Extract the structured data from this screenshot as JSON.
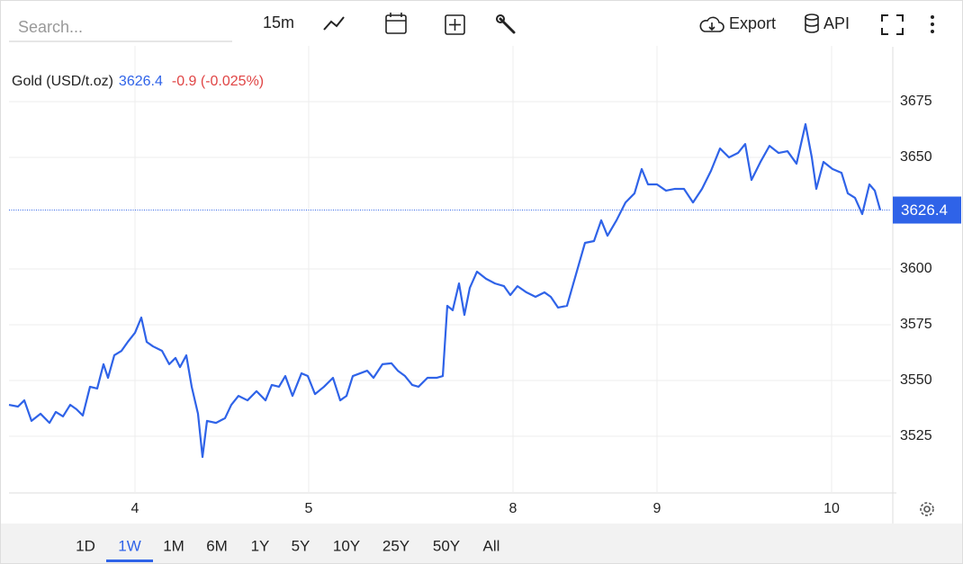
{
  "toolbar": {
    "search_placeholder": "Search...",
    "interval": "15m",
    "export": "Export",
    "api": "API"
  },
  "chart_data": {
    "type": "line",
    "title": "Gold (USD/t.oz)",
    "price": 3626.4,
    "change": "-0.9 (-0.025%)",
    "color": "#2f63e8",
    "x": [
      0,
      1,
      1.7,
      2.5,
      3.5,
      4.5,
      5.2,
      6,
      6.8,
      7.5,
      8.2,
      9,
      9.8,
      10.5,
      11,
      11.7,
      12.5,
      13.2,
      14,
      14.7,
      15.3,
      16,
      17,
      17.8,
      18.5,
      19,
      19.7,
      20.3,
      21,
      21.5,
      22,
      23,
      24,
      24.7,
      25.5,
      26.5,
      27.5,
      28.5,
      29.2,
      30,
      30.7,
      31.5,
      32.5,
      33.2,
      34,
      35,
      36,
      36.8,
      37.5,
      38.2,
      39,
      39.8,
      40.5,
      41.5,
      42.5,
      43.2,
      44,
      44.8,
      45.5,
      46.5,
      47.5,
      48.2,
      48.7,
      49.3,
      50,
      50.6,
      51.2,
      52,
      53,
      54,
      55,
      55.7,
      56.5,
      57.5,
      58.5,
      59.5,
      60.2,
      61,
      62,
      63,
      64,
      65,
      65.8,
      66.5,
      67.5,
      68.5,
      69.5,
      70.3,
      71,
      72,
      73,
      74,
      75,
      76,
      77,
      78,
      79,
      80,
      81,
      81.8,
      82.5,
      83.5,
      84.5,
      85.5,
      86.5,
      87.5,
      88.5,
      89.2,
      89.7,
      90.5,
      91.5,
      92.5,
      93.2,
      94,
      94.8,
      95.6,
      96.2,
      96.8
    ],
    "values": [
      3539.1,
      3538.3,
      3541.1,
      3531.9,
      3535.1,
      3531.0,
      3535.9,
      3533.9,
      3539.1,
      3537.1,
      3534.3,
      3547.2,
      3546.4,
      3557.3,
      3551.2,
      3561.3,
      3563.3,
      3567.3,
      3571.4,
      3578.2,
      3567.3,
      3565.3,
      3563.3,
      3557.3,
      3560.1,
      3556.0,
      3561.3,
      3547.2,
      3535.1,
      3515.7,
      3531.9,
      3531.0,
      3533.1,
      3539.1,
      3543.1,
      3541.1,
      3545.2,
      3541.1,
      3548.0,
      3547.2,
      3552.0,
      3543.1,
      3553.2,
      3552.0,
      3543.9,
      3547.2,
      3551.2,
      3541.1,
      3543.1,
      3552.0,
      3553.2,
      3554.4,
      3551.2,
      3557.3,
      3557.7,
      3554.4,
      3552.0,
      3548.0,
      3547.2,
      3551.2,
      3551.2,
      3552.0,
      3583.5,
      3581.5,
      3593.5,
      3579.4,
      3591.5,
      3598.8,
      3595.6,
      3593.5,
      3592.3,
      3588.3,
      3592.3,
      3589.5,
      3587.5,
      3589.5,
      3587.5,
      3582.7,
      3583.5,
      3597.6,
      3611.7,
      3612.5,
      3621.8,
      3614.9,
      3621.8,
      3629.8,
      3633.9,
      3644.8,
      3637.9,
      3637.9,
      3635.1,
      3635.9,
      3635.9,
      3629.8,
      3635.9,
      3644.0,
      3654.0,
      3650.0,
      3652.0,
      3656.0,
      3639.9,
      3648.0,
      3655.2,
      3652.0,
      3652.8,
      3647.2,
      3664.9,
      3650.0,
      3635.9,
      3648.0,
      3644.8,
      3643.1,
      3633.9,
      3631.9,
      3624.6,
      3637.9,
      3635.1,
      3626.4
    ],
    "xlim": [
      0,
      98
    ],
    "xticks": [
      {
        "value": 14,
        "label": "4"
      },
      {
        "value": 33.3,
        "label": "5"
      },
      {
        "value": 56,
        "label": "8"
      },
      {
        "value": 72,
        "label": "9"
      },
      {
        "value": 91.4,
        "label": "10"
      }
    ],
    "ylim": [
      3500,
      3700
    ],
    "yticks": [
      3525,
      3550,
      3575,
      3600,
      3650,
      3675
    ],
    "grid": true
  },
  "ranges": {
    "options": [
      "1D",
      "1W",
      "1M",
      "6M",
      "1Y",
      "5Y",
      "10Y",
      "25Y",
      "50Y",
      "All"
    ],
    "selected": 1
  }
}
